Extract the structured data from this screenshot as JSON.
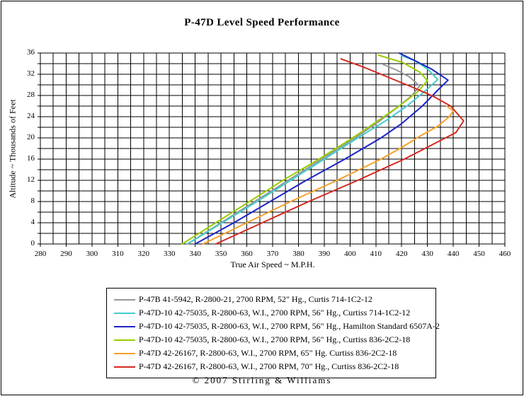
{
  "title": "P-47D Level Speed Performance",
  "footer": "© 2007 Stirling & Williams",
  "chart_data": {
    "type": "line",
    "title": "P-47D Level Speed Performance",
    "xlabel": "True Air Speed ~ M.P.H.",
    "ylabel": "Altitude ~ Thousands of Feet",
    "xlim": [
      280,
      460
    ],
    "ylim": [
      0,
      36
    ],
    "x_gridline_step": 5,
    "y_gridline_step": 2,
    "x_tick_labels": [
      280,
      290,
      300,
      310,
      320,
      330,
      340,
      350,
      360,
      370,
      380,
      390,
      400,
      410,
      420,
      430,
      440,
      450,
      460
    ],
    "y_tick_labels": [
      0,
      4,
      8,
      12,
      16,
      20,
      24,
      28,
      32,
      36
    ],
    "grid": true,
    "legend_position": "bottom",
    "grid_color": "#000000",
    "series": [
      {
        "name": "P-47B 41-5942, R-2800-21, 2700 RPM, 52\" Hg., Curtis 714-1C2-12",
        "color": "#999999",
        "points": [
          [
            337,
            0
          ],
          [
            350,
            4
          ],
          [
            363,
            8
          ],
          [
            376,
            12
          ],
          [
            389,
            16
          ],
          [
            402,
            20
          ],
          [
            411,
            23
          ],
          [
            419,
            26
          ],
          [
            424,
            28
          ],
          [
            427,
            29.8
          ],
          [
            423,
            31.5
          ],
          [
            418,
            32.8
          ],
          [
            413,
            33.8
          ]
        ]
      },
      {
        "name": "P-47D-10 42-75035, R-2800-63, W.I., 2700 RPM, 56\" Hg., Curtiss 714-1C2-12",
        "color": "#45CCCC",
        "points": [
          [
            337,
            0
          ],
          [
            350.5,
            4
          ],
          [
            364,
            8
          ],
          [
            377,
            12
          ],
          [
            390,
            16
          ],
          [
            403,
            20
          ],
          [
            414,
            23.3
          ],
          [
            422,
            26
          ],
          [
            429,
            28.8
          ],
          [
            434,
            31
          ],
          [
            430,
            33
          ],
          [
            425,
            34.6
          ],
          [
            420,
            35.5
          ]
        ]
      },
      {
        "name": "P-47D-10 42-75035, R-2800-63, W.I., 2700 RPM, 56\" Hg., Hamilton Standard 6507A-2",
        "color": "#1B24C8",
        "points": [
          [
            340,
            0
          ],
          [
            355,
            4
          ],
          [
            369,
            8
          ],
          [
            383,
            12
          ],
          [
            398,
            16
          ],
          [
            412,
            20
          ],
          [
            420,
            22.7
          ],
          [
            428,
            26
          ],
          [
            434,
            29
          ],
          [
            438,
            30.9
          ],
          [
            431.5,
            33
          ],
          [
            425,
            34.6
          ],
          [
            419,
            36
          ]
        ]
      },
      {
        "name": "P-47D-10 42-75035, R-2800-63, W.I., 2700 RPM, 56\" Hg., Curtiss 836-2C2-18",
        "color": "#99CC00",
        "points": [
          [
            335,
            0
          ],
          [
            348,
            4
          ],
          [
            361,
            8
          ],
          [
            374,
            12
          ],
          [
            388,
            16
          ],
          [
            401,
            20
          ],
          [
            411,
            23.3
          ],
          [
            419,
            26
          ],
          [
            426,
            28.6
          ],
          [
            430,
            30.8
          ],
          [
            427,
            32.4
          ],
          [
            420.5,
            34.2
          ],
          [
            411,
            35.6
          ]
        ]
      },
      {
        "name": "P-47D 42-26167, R-2800-63, W.I., 2700 RPM, 65\" Hg. Curtiss 836-2C2-18",
        "color": "#F5A028",
        "points": [
          [
            343,
            0
          ],
          [
            360,
            4
          ],
          [
            377,
            8
          ],
          [
            395,
            12
          ],
          [
            412,
            16
          ],
          [
            420,
            18.2
          ],
          [
            427,
            20.3
          ],
          [
            434,
            22.2
          ],
          [
            438.5,
            24
          ],
          [
            440,
            25.1
          ],
          [
            437.5,
            26
          ]
        ]
      },
      {
        "name": "P-47D 42-26167, R-2800-63, W.I., 2700 RPM, 70\" Hg., Curtiss 836-2C2-18",
        "color": "#D42820",
        "points": [
          [
            348,
            0
          ],
          [
            366,
            4
          ],
          [
            384,
            8
          ],
          [
            403,
            12
          ],
          [
            421,
            16
          ],
          [
            433,
            19
          ],
          [
            441,
            21
          ],
          [
            444,
            23.2
          ],
          [
            439,
            26
          ],
          [
            432,
            27.9
          ],
          [
            424,
            29.6
          ],
          [
            416,
            31.2
          ],
          [
            406,
            33.2
          ],
          [
            396.5,
            34.9
          ]
        ]
      }
    ]
  }
}
